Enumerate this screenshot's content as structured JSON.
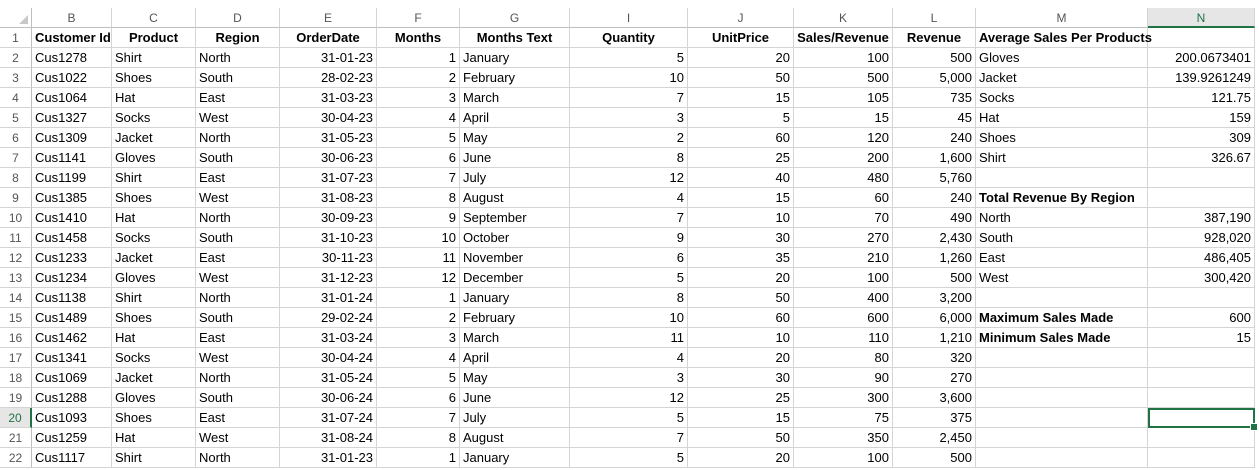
{
  "columns": [
    "B",
    "C",
    "D",
    "E",
    "F",
    "G",
    "I",
    "J",
    "K",
    "L",
    "M",
    "N"
  ],
  "selected_column": "N",
  "selected_row": "20",
  "headers": [
    "Customer Id",
    "Product",
    "Region",
    "OrderDate",
    "Months",
    "Months Text",
    "Quantity",
    "UnitPrice",
    "Sales/Revenue",
    "Revenue",
    "Average Sales Per Products",
    ""
  ],
  "rows": [
    {
      "n": "2",
      "cust": "Cus1278",
      "product": "Shirt",
      "region": "North",
      "date": "31-01-23",
      "month": "1",
      "mtext": "January",
      "qty": "5",
      "price": "20",
      "sales": "100",
      "revenue": "500",
      "m": "Gloves",
      "nval": "200.0673401"
    },
    {
      "n": "3",
      "cust": "Cus1022",
      "product": "Shoes",
      "region": "South",
      "date": "28-02-23",
      "month": "2",
      "mtext": "February",
      "qty": "10",
      "price": "50",
      "sales": "500",
      "revenue": "5,000",
      "m": "Jacket",
      "nval": "139.9261249"
    },
    {
      "n": "4",
      "cust": "Cus1064",
      "product": "Hat",
      "region": "East",
      "date": "31-03-23",
      "month": "3",
      "mtext": "March",
      "qty": "7",
      "price": "15",
      "sales": "105",
      "revenue": "735",
      "m": "Socks",
      "nval": "121.75"
    },
    {
      "n": "5",
      "cust": "Cus1327",
      "product": "Socks",
      "region": "West",
      "date": "30-04-23",
      "month": "4",
      "mtext": "April",
      "qty": "3",
      "price": "5",
      "sales": "15",
      "revenue": "45",
      "m": " Hat",
      "nval": "159"
    },
    {
      "n": "6",
      "cust": "Cus1309",
      "product": "Jacket",
      "region": "North",
      "date": "31-05-23",
      "month": "5",
      "mtext": "May",
      "qty": "2",
      "price": "60",
      "sales": "120",
      "revenue": "240",
      "m": " Shoes",
      "nval": "309"
    },
    {
      "n": "7",
      "cust": "Cus1141",
      "product": "Gloves",
      "region": "South",
      "date": "30-06-23",
      "month": "6",
      "mtext": "June",
      "qty": "8",
      "price": "25",
      "sales": "200",
      "revenue": "1,600",
      "m": " Shirt",
      "nval": "326.67"
    },
    {
      "n": "8",
      "cust": "Cus1199",
      "product": "Shirt",
      "region": "East",
      "date": "31-07-23",
      "month": "7",
      "mtext": "July",
      "qty": "12",
      "price": "40",
      "sales": "480",
      "revenue": "5,760",
      "m": "",
      "nval": ""
    },
    {
      "n": "9",
      "cust": "Cus1385",
      "product": "Shoes",
      "region": "West",
      "date": "31-08-23",
      "month": "8",
      "mtext": "August",
      "qty": "4",
      "price": "15",
      "sales": "60",
      "revenue": "240",
      "m": " Total Revenue By Region",
      "nval": "",
      "mbold": true
    },
    {
      "n": "10",
      "cust": "Cus1410",
      "product": "Hat",
      "region": "North",
      "date": "30-09-23",
      "month": "9",
      "mtext": "September",
      "qty": "7",
      "price": "10",
      "sales": "70",
      "revenue": "490",
      "m": " North",
      "nval": "387,190"
    },
    {
      "n": "11",
      "cust": "Cus1458",
      "product": "Socks",
      "region": "South",
      "date": "31-10-23",
      "month": "10",
      "mtext": "October",
      "qty": "9",
      "price": "30",
      "sales": "270",
      "revenue": "2,430",
      "m": " South",
      "nval": "928,020"
    },
    {
      "n": "12",
      "cust": "Cus1233",
      "product": "Jacket",
      "region": "East",
      "date": "30-11-23",
      "month": "11",
      "mtext": "November",
      "qty": "6",
      "price": "35",
      "sales": "210",
      "revenue": "1,260",
      "m": " East",
      "nval": "486,405"
    },
    {
      "n": "13",
      "cust": "Cus1234",
      "product": "Gloves",
      "region": "West",
      "date": "31-12-23",
      "month": "12",
      "mtext": "December",
      "qty": "5",
      "price": "20",
      "sales": "100",
      "revenue": "500",
      "m": " West",
      "nval": "300,420"
    },
    {
      "n": "14",
      "cust": "Cus1138",
      "product": "Shirt",
      "region": "North",
      "date": "31-01-24",
      "month": "1",
      "mtext": "January",
      "qty": "8",
      "price": "50",
      "sales": "400",
      "revenue": "3,200",
      "m": "",
      "nval": ""
    },
    {
      "n": "15",
      "cust": "Cus1489",
      "product": "Shoes",
      "region": "South",
      "date": "29-02-24",
      "month": "2",
      "mtext": "February",
      "qty": "10",
      "price": "60",
      "sales": "600",
      "revenue": "6,000",
      "m": "Maximum Sales Made",
      "nval": "600",
      "mbold": true
    },
    {
      "n": "16",
      "cust": "Cus1462",
      "product": "Hat",
      "region": "East",
      "date": "31-03-24",
      "month": "3",
      "mtext": "March",
      "qty": "11",
      "price": "10",
      "sales": "110",
      "revenue": "1,210",
      "m": "Minimum Sales Made",
      "nval": "15",
      "mbold": true
    },
    {
      "n": "17",
      "cust": "Cus1341",
      "product": "Socks",
      "region": "West",
      "date": "30-04-24",
      "month": "4",
      "mtext": "April",
      "qty": "4",
      "price": "20",
      "sales": "80",
      "revenue": "320",
      "m": "",
      "nval": ""
    },
    {
      "n": "18",
      "cust": "Cus1069",
      "product": "Jacket",
      "region": "North",
      "date": "31-05-24",
      "month": "5",
      "mtext": "May",
      "qty": "3",
      "price": "30",
      "sales": "90",
      "revenue": "270",
      "m": "",
      "nval": ""
    },
    {
      "n": "19",
      "cust": "Cus1288",
      "product": "Gloves",
      "region": "South",
      "date": "30-06-24",
      "month": "6",
      "mtext": "June",
      "qty": "12",
      "price": "25",
      "sales": "300",
      "revenue": "3,600",
      "m": "",
      "nval": ""
    },
    {
      "n": "20",
      "cust": "Cus1093",
      "product": "Shoes",
      "region": "East",
      "date": "31-07-24",
      "month": "7",
      "mtext": "July",
      "qty": "5",
      "price": "15",
      "sales": "75",
      "revenue": "375",
      "m": "",
      "nval": ""
    },
    {
      "n": "21",
      "cust": "Cus1259",
      "product": "Hat",
      "region": "West",
      "date": "31-08-24",
      "month": "8",
      "mtext": "August",
      "qty": "7",
      "price": "50",
      "sales": "350",
      "revenue": "2,450",
      "m": "",
      "nval": ""
    },
    {
      "n": "22",
      "cust": "Cus1117",
      "product": "Shirt",
      "region": "North",
      "date": "31-01-23",
      "month": "1",
      "mtext": "January",
      "qty": "5",
      "price": "20",
      "sales": "100",
      "revenue": "500",
      "m": "",
      "nval": ""
    }
  ],
  "header_row_number": "1"
}
